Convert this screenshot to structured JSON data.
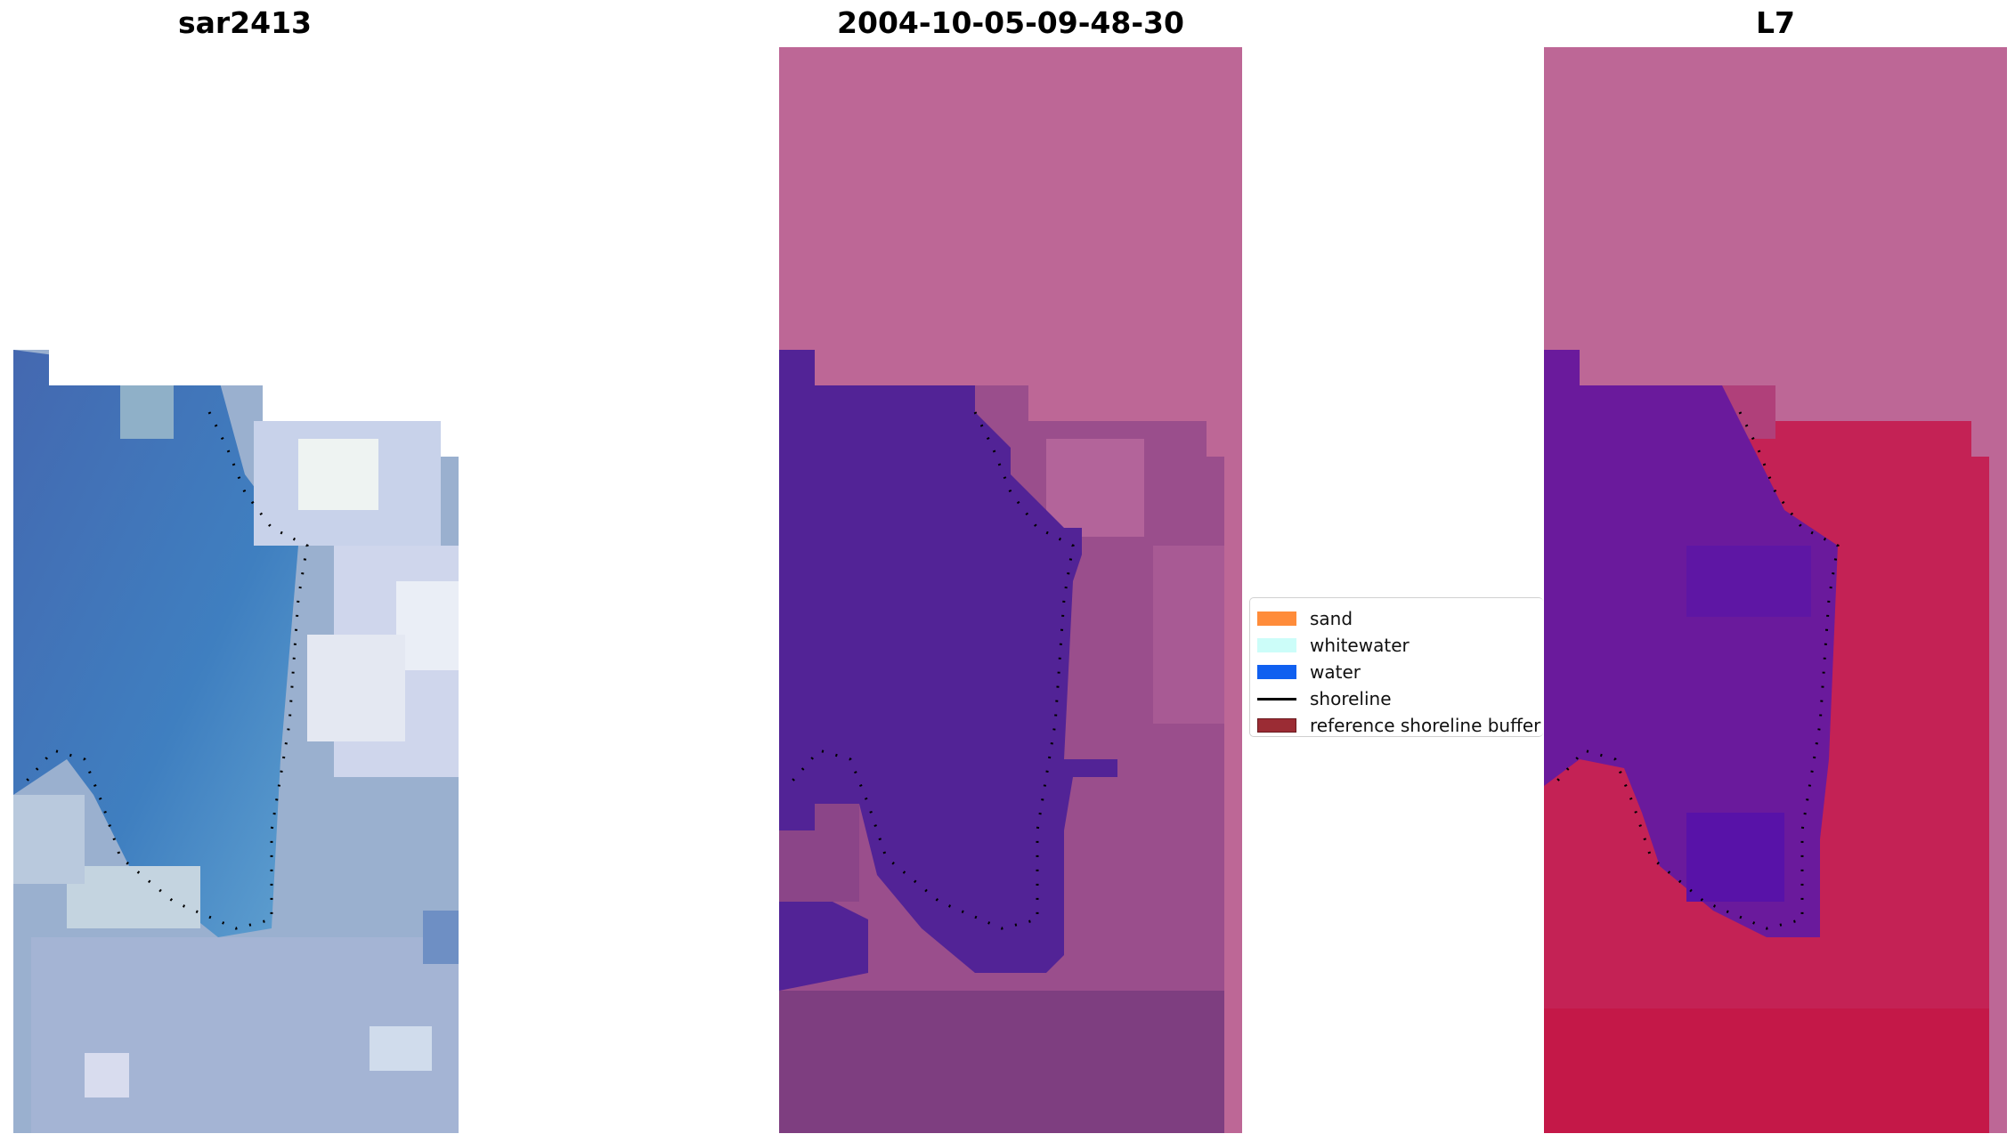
{
  "panels": [
    {
      "title": "sar2413",
      "style": "rgb"
    },
    {
      "title": "2004-10-05-09-48-30",
      "style": "classified"
    },
    {
      "title": "L7",
      "style": "l7"
    }
  ],
  "legend": {
    "items": [
      {
        "label": "sand",
        "color": "#ff8c3a",
        "kind": "patch"
      },
      {
        "label": "whitewater",
        "color": "#ccfdf9",
        "kind": "patch"
      },
      {
        "label": "water",
        "color": "#1060f0",
        "kind": "patch"
      },
      {
        "label": "shoreline",
        "color": "#000000",
        "kind": "line"
      },
      {
        "label": "reference shoreline buffer",
        "color": "#9b2c34",
        "kind": "patch"
      }
    ]
  },
  "colors": {
    "nodata_pink": "#bd6796",
    "water_purple": "#522396",
    "sea_blue": "#4a76b8",
    "land_grey_blue": "#9ab0cf",
    "l7_land_red": "#c42255",
    "l7_water_purple": "#6a1a9c"
  }
}
